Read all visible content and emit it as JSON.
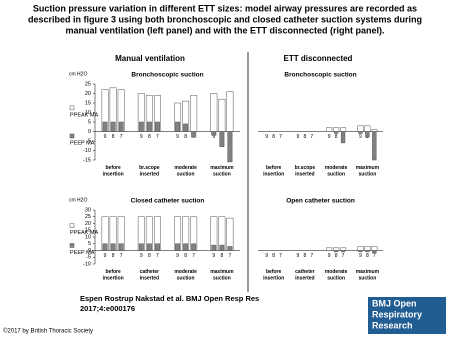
{
  "title": [
    "Suction pressure variation in different ETT sizes: model airway pressures are recorded as",
    "described in figure 3 using both bronchoscopic and closed catheter suction systems during",
    "manual ventilation (left panel) and with the ETT disconnected (right panel)."
  ],
  "panel_headers": [
    "Manual  ventilation",
    "ETT  disconnected"
  ],
  "citation": [
    "Espen Rostrup Nakstad et al. BMJ Open Resp Res",
    "2017;4:e000176"
  ],
  "logo": [
    "BMJ Open",
    "Respiratory",
    "Research"
  ],
  "copyright": "©2017 by British Thoracic Society",
  "chart_data": [
    {
      "type": "bar",
      "title": "Bronchoscopic  suction",
      "y_label": "cm H2O",
      "groups": [
        "before insertion",
        "br.scope inserted",
        "moderate suction",
        "maximum suction"
      ],
      "categories": [
        "9",
        "8",
        "7",
        "9",
        "8",
        "7",
        "9",
        "8",
        "7",
        "9",
        "8",
        "7"
      ],
      "ylim": [
        -15,
        25
      ],
      "yticks": [
        -15,
        -10,
        -5,
        0,
        5,
        10,
        15,
        20,
        25
      ],
      "series": [
        {
          "name": "PPEAK MA",
          "color": "#ffffff",
          "values": [
            22,
            23,
            22,
            20,
            19,
            19,
            15,
            16,
            19,
            20,
            17,
            21
          ]
        },
        {
          "name": "PEEP MA",
          "color": "#808080",
          "values": [
            5,
            5,
            5,
            5,
            5,
            5,
            5,
            4,
            -3,
            -2,
            -8,
            -16
          ]
        }
      ]
    },
    {
      "type": "bar",
      "title": "Bronchoscopic  suction",
      "groups": [
        "before insertion",
        "br.scope inserted",
        "moderate suction",
        "maximum suction"
      ],
      "categories": [
        "9",
        "8",
        "7",
        "9",
        "8",
        "7",
        "9",
        "8",
        "7",
        "9",
        "8",
        "7"
      ],
      "ylim": [
        -15,
        25
      ],
      "series": [
        {
          "color": "#ffffff",
          "values": [
            0,
            0,
            0,
            0,
            0,
            0,
            2,
            2,
            2,
            3,
            3,
            1
          ]
        },
        {
          "color": "#808080",
          "values": [
            0,
            0,
            0,
            0,
            0,
            0,
            0,
            -1,
            -6,
            -1,
            -3,
            -15
          ]
        }
      ]
    },
    {
      "type": "bar",
      "title": "Closed  catheter  suction",
      "y_label": "cm H2O",
      "groups": [
        "before insertion",
        "catheter inserted",
        "moderate suction",
        "maximum suction"
      ],
      "categories": [
        "9",
        "8",
        "7",
        "9",
        "8",
        "7",
        "9",
        "8",
        "7",
        "9",
        "8",
        "7"
      ],
      "ylim": [
        -10,
        30
      ],
      "yticks": [
        -10,
        -5,
        0,
        5,
        10,
        15,
        20,
        25,
        30
      ],
      "series": [
        {
          "name": "PPEAK MA",
          "color": "#ffffff",
          "values": [
            25,
            25,
            25,
            25,
            25,
            25,
            25,
            25,
            25,
            25,
            25,
            24
          ]
        },
        {
          "name": "PEEP MA",
          "color": "#808080",
          "values": [
            5,
            5,
            5,
            5,
            5,
            5,
            5,
            5,
            5,
            4,
            4,
            3
          ]
        }
      ]
    },
    {
      "type": "bar",
      "title": "Open  catheter  suction",
      "groups": [
        "before insertion",
        "catheter inserted",
        "moderate suction",
        "maximum suction"
      ],
      "categories": [
        "9",
        "8",
        "7",
        "9",
        "8",
        "7",
        "9",
        "8",
        "7",
        "9",
        "8",
        "7"
      ],
      "ylim": [
        -10,
        30
      ],
      "series": [
        {
          "color": "#ffffff",
          "values": [
            0,
            0,
            0,
            0,
            0,
            0,
            2,
            2,
            2,
            3,
            3,
            3
          ]
        },
        {
          "color": "#808080",
          "values": [
            0,
            0,
            0,
            0,
            0,
            0,
            0,
            -1,
            -1,
            -1,
            -1,
            -2
          ]
        }
      ]
    }
  ]
}
